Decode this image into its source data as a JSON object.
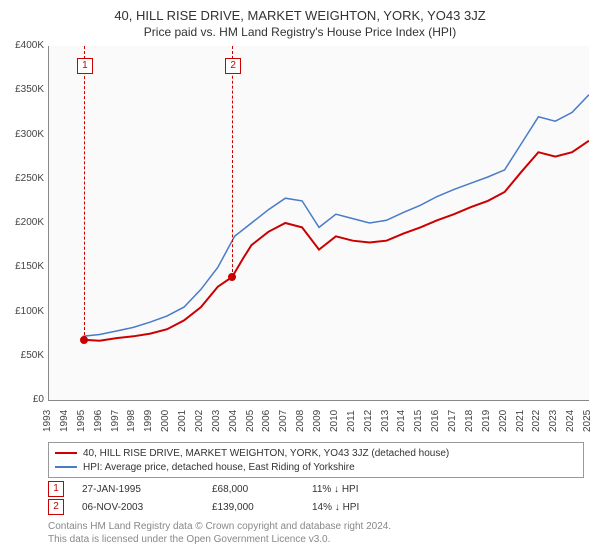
{
  "title": "40, HILL RISE DRIVE, MARKET WEIGHTON, YORK, YO43 3JZ",
  "subtitle": "Price paid vs. HM Land Registry's House Price Index (HPI)",
  "chart": {
    "type": "line",
    "background_color": "#fafafa",
    "grid_color": "#e0e0e0",
    "axis_color": "#888888",
    "ylim": [
      0,
      400000
    ],
    "ytick_step": 50000,
    "yticks": [
      "£0",
      "£50K",
      "£100K",
      "£150K",
      "£200K",
      "£250K",
      "£300K",
      "£350K",
      "£400K"
    ],
    "xlim": [
      1993,
      2025
    ],
    "xticks": [
      1993,
      1994,
      1995,
      1996,
      1997,
      1998,
      1999,
      2000,
      2001,
      2002,
      2003,
      2004,
      2005,
      2006,
      2007,
      2008,
      2009,
      2010,
      2011,
      2012,
      2013,
      2014,
      2015,
      2016,
      2017,
      2018,
      2019,
      2020,
      2021,
      2022,
      2023,
      2024,
      2025
    ],
    "series": [
      {
        "name": "40, HILL RISE DRIVE, MARKET WEIGHTON, YORK, YO43 3JZ (detached house)",
        "color": "#cc0000",
        "width": 2,
        "points": [
          [
            1995.07,
            68000
          ],
          [
            1996,
            67000
          ],
          [
            1997,
            70000
          ],
          [
            1998,
            72000
          ],
          [
            1999,
            75000
          ],
          [
            2000,
            80000
          ],
          [
            2001,
            90000
          ],
          [
            2002,
            105000
          ],
          [
            2003,
            128000
          ],
          [
            2003.85,
            139000
          ],
          [
            2004.5,
            160000
          ],
          [
            2005,
            175000
          ],
          [
            2006,
            190000
          ],
          [
            2007,
            200000
          ],
          [
            2008,
            195000
          ],
          [
            2009,
            170000
          ],
          [
            2010,
            185000
          ],
          [
            2011,
            180000
          ],
          [
            2012,
            178000
          ],
          [
            2013,
            180000
          ],
          [
            2014,
            188000
          ],
          [
            2015,
            195000
          ],
          [
            2016,
            203000
          ],
          [
            2017,
            210000
          ],
          [
            2018,
            218000
          ],
          [
            2019,
            225000
          ],
          [
            2020,
            235000
          ],
          [
            2021,
            258000
          ],
          [
            2022,
            280000
          ],
          [
            2023,
            275000
          ],
          [
            2024,
            280000
          ],
          [
            2025,
            293000
          ]
        ]
      },
      {
        "name": "HPI: Average price, detached house, East Riding of Yorkshire",
        "color": "#4a7bc8",
        "width": 1.5,
        "points": [
          [
            1995,
            72000
          ],
          [
            1996,
            74000
          ],
          [
            1997,
            78000
          ],
          [
            1998,
            82000
          ],
          [
            1999,
            88000
          ],
          [
            2000,
            95000
          ],
          [
            2001,
            105000
          ],
          [
            2002,
            125000
          ],
          [
            2003,
            150000
          ],
          [
            2004,
            185000
          ],
          [
            2005,
            200000
          ],
          [
            2006,
            215000
          ],
          [
            2007,
            228000
          ],
          [
            2008,
            225000
          ],
          [
            2009,
            195000
          ],
          [
            2010,
            210000
          ],
          [
            2011,
            205000
          ],
          [
            2012,
            200000
          ],
          [
            2013,
            203000
          ],
          [
            2014,
            212000
          ],
          [
            2015,
            220000
          ],
          [
            2016,
            230000
          ],
          [
            2017,
            238000
          ],
          [
            2018,
            245000
          ],
          [
            2019,
            252000
          ],
          [
            2020,
            260000
          ],
          [
            2021,
            290000
          ],
          [
            2022,
            320000
          ],
          [
            2023,
            315000
          ],
          [
            2024,
            325000
          ],
          [
            2025,
            345000
          ]
        ]
      }
    ],
    "markers": [
      {
        "n": "1",
        "x": 1995.07,
        "y": 68000
      },
      {
        "n": "2",
        "x": 2003.85,
        "y": 139000
      }
    ]
  },
  "legend": {
    "series1": "40, HILL RISE DRIVE, MARKET WEIGHTON, YORK, YO43 3JZ (detached house)",
    "series1_color": "#cc0000",
    "series2": "HPI: Average price, detached house, East Riding of Yorkshire",
    "series2_color": "#4a7bc8"
  },
  "transactions": [
    {
      "n": "1",
      "date": "27-JAN-1995",
      "price": "£68,000",
      "pct": "11% ↓ HPI"
    },
    {
      "n": "2",
      "date": "06-NOV-2003",
      "price": "£139,000",
      "pct": "14% ↓ HPI"
    }
  ],
  "footer": {
    "line1": "Contains HM Land Registry data © Crown copyright and database right 2024.",
    "line2": "This data is licensed under the Open Government Licence v3.0."
  }
}
